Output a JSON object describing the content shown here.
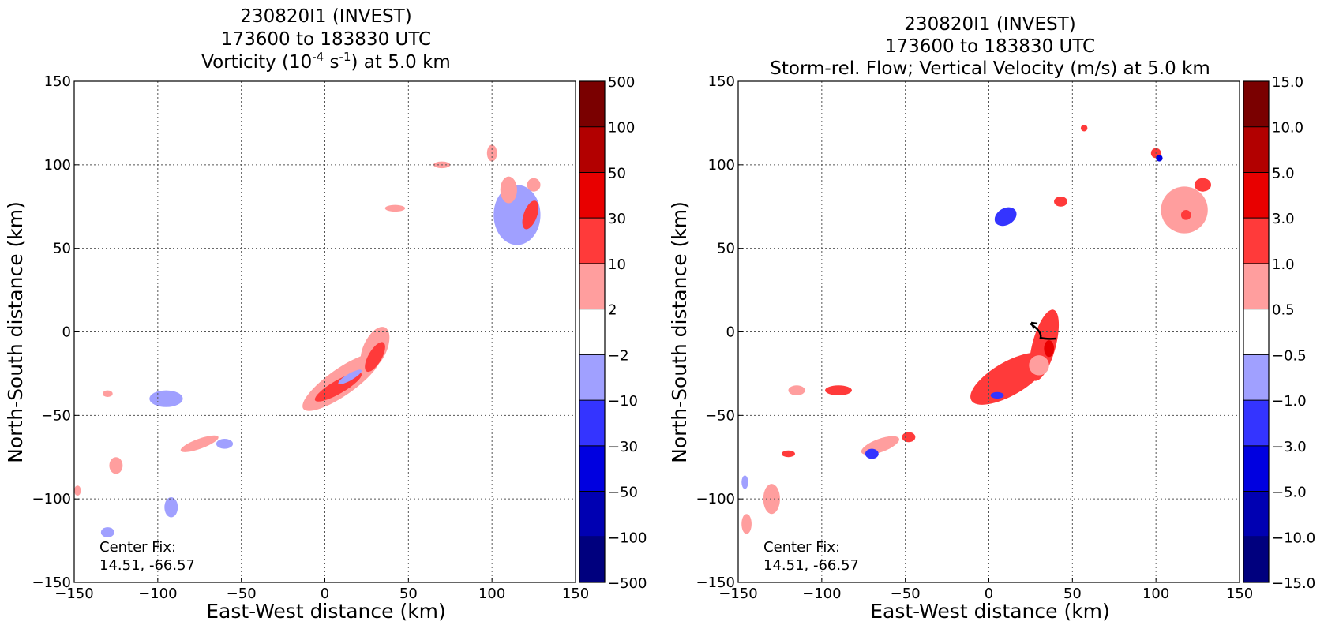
{
  "chart_data": [
    {
      "type": "contour-map",
      "title": [
        "230820I1 (INVEST)",
        "173600 to 183830 UTC",
        "Vorticity (10",
        "-4",
        " s",
        "-1",
        ") at 5.0 km"
      ],
      "xlabel": "East-West distance (km)",
      "ylabel": "North-South distance (km)",
      "xlim": [
        -150,
        150
      ],
      "ylim": [
        -150,
        150
      ],
      "xticks": [
        "−150",
        "−100",
        "−50",
        "0",
        "50",
        "100",
        "150"
      ],
      "yticks": [
        "150",
        "100",
        "50",
        "0",
        "−50",
        "−100",
        "−150"
      ],
      "grid": true,
      "annotation": [
        "Center Fix:",
        "14.51, -66.57"
      ],
      "colorbar": {
        "levels": [
          "500",
          "100",
          "50",
          "30",
          "10",
          "2",
          "−2",
          "−10",
          "−30",
          "−50",
          "−100",
          "−500"
        ],
        "colors": [
          "#7a0000",
          "#b20000",
          "#e80000",
          "#ff3a3a",
          "#ff9e9e",
          "#ffffff",
          "#a0a0ff",
          "#3434ff",
          "#0000e0",
          "#0000b2",
          "#00007e"
        ]
      },
      "blobs": [
        {
          "x": 10,
          "y": -30,
          "rx": 28,
          "ry": 8,
          "rot": -35,
          "color": "#ff9e9e"
        },
        {
          "x": 30,
          "y": -10,
          "rx": 14,
          "ry": 7,
          "rot": -65,
          "color": "#ff9e9e"
        },
        {
          "x": 8,
          "y": -33,
          "rx": 16,
          "ry": 4,
          "rot": -30,
          "color": "#ff3a3a"
        },
        {
          "x": 30,
          "y": -15,
          "rx": 10,
          "ry": 4,
          "rot": -60,
          "color": "#ff3a3a"
        },
        {
          "x": 15,
          "y": -27,
          "rx": 8,
          "ry": 2,
          "rot": -30,
          "color": "#a0a0ff"
        },
        {
          "x": 115,
          "y": 70,
          "rx": 14,
          "ry": 18,
          "rot": 0,
          "color": "#a0a0ff"
        },
        {
          "x": 123,
          "y": 70,
          "rx": 4,
          "ry": 9,
          "rot": 20,
          "color": "#ff3a3a"
        },
        {
          "x": 110,
          "y": 85,
          "rx": 5,
          "ry": 8,
          "rot": 0,
          "color": "#ff9e9e"
        },
        {
          "x": 100,
          "y": 107,
          "rx": 3,
          "ry": 5,
          "rot": 0,
          "color": "#ff9e9e"
        },
        {
          "x": 125,
          "y": 88,
          "rx": 4,
          "ry": 4,
          "rot": 0,
          "color": "#ff9e9e"
        },
        {
          "x": 70,
          "y": 100,
          "rx": 5,
          "ry": 2,
          "rot": 0,
          "color": "#ff9e9e"
        },
        {
          "x": 42,
          "y": 74,
          "rx": 6,
          "ry": 2,
          "rot": 0,
          "color": "#ff9e9e"
        },
        {
          "x": -95,
          "y": -40,
          "rx": 10,
          "ry": 5,
          "rot": 0,
          "color": "#a0a0ff"
        },
        {
          "x": -75,
          "y": -67,
          "rx": 12,
          "ry": 3,
          "rot": -20,
          "color": "#ff9e9e"
        },
        {
          "x": -60,
          "y": -67,
          "rx": 5,
          "ry": 3,
          "rot": 0,
          "color": "#a0a0ff"
        },
        {
          "x": -125,
          "y": -80,
          "rx": 4,
          "ry": 5,
          "rot": 0,
          "color": "#ff9e9e"
        },
        {
          "x": -92,
          "y": -105,
          "rx": 4,
          "ry": 6,
          "rot": 0,
          "color": "#a0a0ff"
        },
        {
          "x": -130,
          "y": -120,
          "rx": 4,
          "ry": 3,
          "rot": 0,
          "color": "#a0a0ff"
        },
        {
          "x": -130,
          "y": -37,
          "rx": 3,
          "ry": 2,
          "rot": 0,
          "color": "#ff9e9e"
        },
        {
          "x": -148,
          "y": -95,
          "rx": 2,
          "ry": 3,
          "rot": 0,
          "color": "#ff9e9e"
        }
      ]
    },
    {
      "type": "contour-map",
      "title": [
        "230820I1 (INVEST)",
        "173600 to 183830 UTC",
        "Storm-rel. Flow; Vertical Velocity (m/s) at 5.0 km"
      ],
      "xlabel": "East-West distance (km)",
      "ylabel": "North-South distance (km)",
      "xlim": [
        -150,
        150
      ],
      "ylim": [
        -150,
        150
      ],
      "xticks": [
        "−150",
        "−100",
        "−50",
        "0",
        "50",
        "100",
        "150"
      ],
      "yticks": [
        "150",
        "100",
        "50",
        "0",
        "−50",
        "−100",
        "−150"
      ],
      "grid": true,
      "annotation": [
        "Center Fix:",
        "14.51, -66.57"
      ],
      "colorbar": {
        "levels": [
          "15.0",
          "10.0",
          "5.0",
          "3.0",
          "1.0",
          "0.5",
          "−0.5",
          "−1.0",
          "−3.0",
          "−5.0",
          "−10.0",
          "−15.0"
        ],
        "colors": [
          "#7a0000",
          "#b20000",
          "#e80000",
          "#ff3a3a",
          "#ff9e9e",
          "#ffffff",
          "#a0a0ff",
          "#3434ff",
          "#0000e0",
          "#0000b2",
          "#00007e"
        ]
      },
      "blobs": [
        {
          "x": 12,
          "y": -28,
          "rx": 26,
          "ry": 10,
          "rot": -30,
          "color": "#ff3a3a"
        },
        {
          "x": 33,
          "y": -8,
          "rx": 22,
          "ry": 7,
          "rot": -75,
          "color": "#ff3a3a"
        },
        {
          "x": 30,
          "y": -20,
          "rx": 6,
          "ry": 6,
          "rot": 0,
          "color": "#ff9e9e"
        },
        {
          "x": 5,
          "y": -38,
          "rx": 4,
          "ry": 2,
          "rot": 0,
          "color": "#3434ff"
        },
        {
          "x": 36,
          "y": -10,
          "rx": 3,
          "ry": 5,
          "rot": 0,
          "color": "#e80000"
        },
        {
          "x": 117,
          "y": 73,
          "rx": 14,
          "ry": 14,
          "rot": 0,
          "color": "#ff9e9e"
        },
        {
          "x": 128,
          "y": 88,
          "rx": 5,
          "ry": 4,
          "rot": 0,
          "color": "#ff3a3a"
        },
        {
          "x": 118,
          "y": 70,
          "rx": 3,
          "ry": 3,
          "rot": 0,
          "color": "#ff3a3a"
        },
        {
          "x": 100,
          "y": 107,
          "rx": 3,
          "ry": 3,
          "rot": 0,
          "color": "#ff3a3a"
        },
        {
          "x": 102,
          "y": 104,
          "rx": 2,
          "ry": 2,
          "rot": 0,
          "color": "#0000e0"
        },
        {
          "x": 10,
          "y": 69,
          "rx": 7,
          "ry": 5,
          "rot": -30,
          "color": "#3434ff"
        },
        {
          "x": 43,
          "y": 78,
          "rx": 4,
          "ry": 3,
          "rot": 0,
          "color": "#ff3a3a"
        },
        {
          "x": 57,
          "y": 122,
          "rx": 2,
          "ry": 2,
          "rot": 0,
          "color": "#ff3a3a"
        },
        {
          "x": -90,
          "y": -35,
          "rx": 8,
          "ry": 3,
          "rot": 0,
          "color": "#ff3a3a"
        },
        {
          "x": -65,
          "y": -68,
          "rx": 12,
          "ry": 4,
          "rot": -20,
          "color": "#ff9e9e"
        },
        {
          "x": -48,
          "y": -63,
          "rx": 4,
          "ry": 3,
          "rot": 0,
          "color": "#ff3a3a"
        },
        {
          "x": -120,
          "y": -73,
          "rx": 4,
          "ry": 2,
          "rot": 0,
          "color": "#ff3a3a"
        },
        {
          "x": -130,
          "y": -100,
          "rx": 5,
          "ry": 9,
          "rot": 0,
          "color": "#ff9e9e"
        },
        {
          "x": -145,
          "y": -115,
          "rx": 3,
          "ry": 6,
          "rot": 0,
          "color": "#ff9e9e"
        },
        {
          "x": -146,
          "y": -90,
          "rx": 2,
          "ry": 4,
          "rot": 0,
          "color": "#a0a0ff"
        },
        {
          "x": -70,
          "y": -73,
          "rx": 4,
          "ry": 3,
          "rot": 0,
          "color": "#3434ff"
        },
        {
          "x": -115,
          "y": -35,
          "rx": 5,
          "ry": 3,
          "rot": 0,
          "color": "#ff9e9e"
        }
      ]
    }
  ]
}
